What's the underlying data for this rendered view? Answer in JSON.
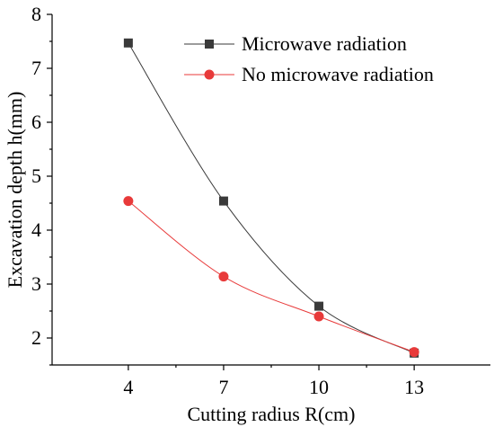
{
  "chart_data": {
    "type": "line",
    "xlabel": "Cutting radius R(cm)",
    "ylabel": "Excavation depth h(mm)",
    "x": [
      4,
      7,
      10,
      13
    ],
    "xticks": [
      "4",
      "7",
      "10",
      "13"
    ],
    "yticks": [
      "2",
      "3",
      "4",
      "5",
      "6",
      "7",
      "8"
    ],
    "xlim": [
      1.6,
      15.4
    ],
    "ylim": [
      1.5,
      8.0
    ],
    "legend_position": "top-right",
    "series": [
      {
        "name": "Microwave radiation",
        "values": [
          7.47,
          4.54,
          2.59,
          1.72
        ],
        "color": "#3a3a3a",
        "marker": "square"
      },
      {
        "name": "No microwave radiation",
        "values": [
          4.54,
          3.14,
          2.4,
          1.74
        ],
        "color": "#e83a3a",
        "marker": "circle"
      }
    ]
  }
}
